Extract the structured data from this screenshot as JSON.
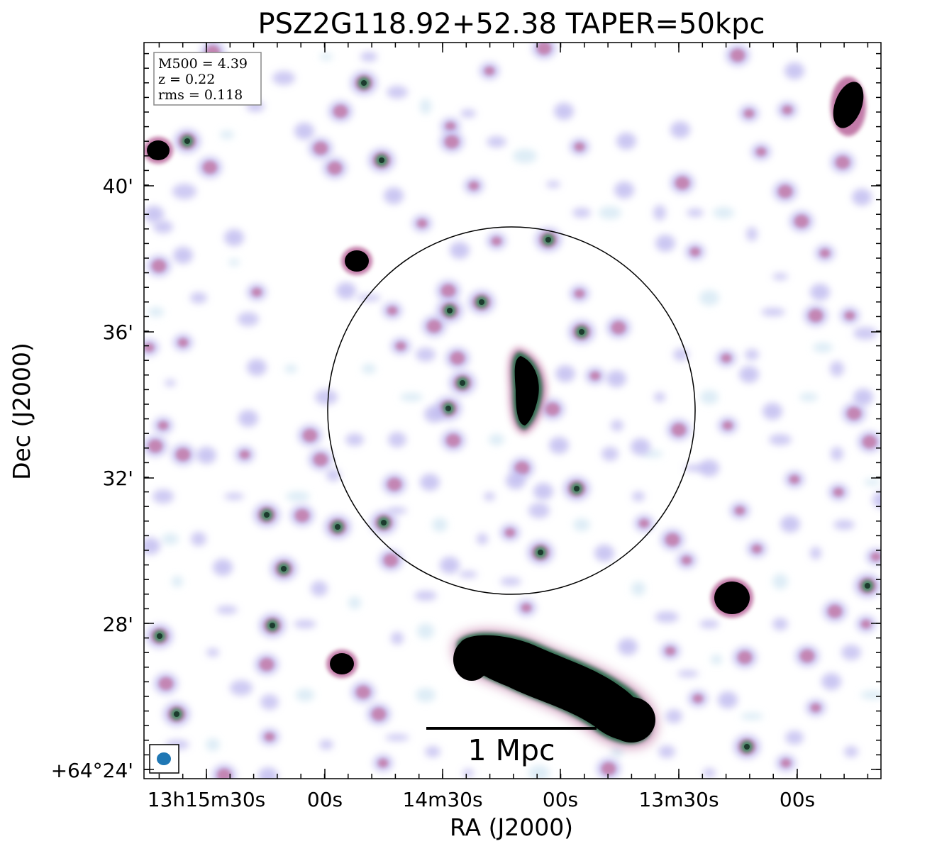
{
  "title": "PSZ2G118.92+52.38 TAPER=50kpc",
  "xlabel": "RA (J2000)",
  "ylabel": "Dec (J2000)",
  "x_ticks": [
    "13h15m30s",
    "00s",
    "14m30s",
    "00s",
    "13m30s",
    "00s"
  ],
  "y_ticks": [
    "40'",
    "36'",
    "32'",
    "28'",
    "+64°24'"
  ],
  "info_box": {
    "lines": [
      "M500 = 4.39",
      "z = 0.22",
      "rms = 0.118"
    ]
  },
  "scale_bar": {
    "label": "1 Mpc"
  },
  "colors": {
    "beam": "#1f77b4",
    "source_core": "#000000",
    "emission_inner": "#3d8a5e",
    "emission_mid": "#c27aa8",
    "emission_outer": "#b9b4ee",
    "emission_faint": "#cfe4f2"
  }
}
